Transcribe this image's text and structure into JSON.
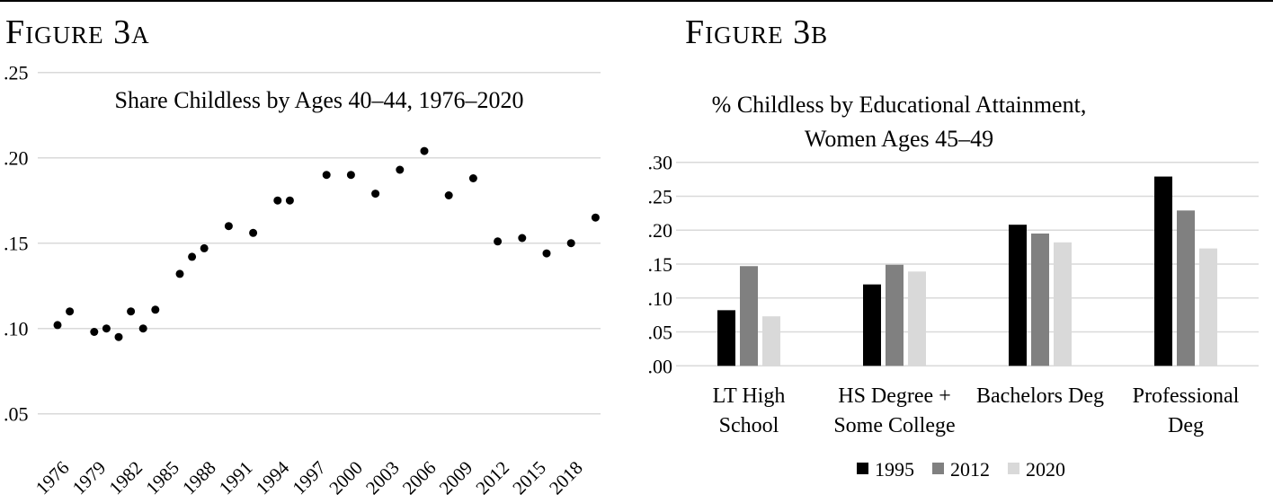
{
  "figures": {
    "a_label": "Figure 3a",
    "b_label": "Figure 3b"
  },
  "chart_data": [
    {
      "type": "scatter",
      "title": "Share Childless by Ages 40–44, 1976–2020",
      "xlabel": "",
      "ylabel": "",
      "ylim": [
        0.05,
        0.25
      ],
      "yticks": [
        ".05",
        ".10",
        ".15",
        ".20",
        ".25"
      ],
      "ytick_values": [
        0.05,
        0.1,
        0.15,
        0.2,
        0.25
      ],
      "xticks": [
        "1976",
        "1979",
        "1982",
        "1985",
        "1988",
        "1991",
        "1994",
        "1997",
        "2000",
        "2003",
        "2006",
        "2009",
        "2012",
        "2015",
        "2018"
      ],
      "grid": true,
      "points": [
        {
          "x": 1976,
          "y": 0.102
        },
        {
          "x": 1977,
          "y": 0.11
        },
        {
          "x": 1979,
          "y": 0.098
        },
        {
          "x": 1980,
          "y": 0.1
        },
        {
          "x": 1981,
          "y": 0.095
        },
        {
          "x": 1982,
          "y": 0.11
        },
        {
          "x": 1983,
          "y": 0.1
        },
        {
          "x": 1984,
          "y": 0.111
        },
        {
          "x": 1986,
          "y": 0.132
        },
        {
          "x": 1987,
          "y": 0.142
        },
        {
          "x": 1988,
          "y": 0.147
        },
        {
          "x": 1990,
          "y": 0.16
        },
        {
          "x": 1992,
          "y": 0.156
        },
        {
          "x": 1994,
          "y": 0.175
        },
        {
          "x": 1995,
          "y": 0.175
        },
        {
          "x": 1998,
          "y": 0.19
        },
        {
          "x": 2000,
          "y": 0.19
        },
        {
          "x": 2002,
          "y": 0.179
        },
        {
          "x": 2004,
          "y": 0.193
        },
        {
          "x": 2006,
          "y": 0.204
        },
        {
          "x": 2008,
          "y": 0.178
        },
        {
          "x": 2010,
          "y": 0.188
        },
        {
          "x": 2012,
          "y": 0.151
        },
        {
          "x": 2014,
          "y": 0.153
        },
        {
          "x": 2016,
          "y": 0.144
        },
        {
          "x": 2018,
          "y": 0.15
        },
        {
          "x": 2020,
          "y": 0.165
        }
      ]
    },
    {
      "type": "bar",
      "title": [
        "% Childless by Educational Attainment,",
        "Women Ages 45–49"
      ],
      "xlabel": "",
      "ylabel": "",
      "ylim": [
        0,
        0.3
      ],
      "yticks": [
        ".00",
        ".05",
        ".10",
        ".15",
        ".20",
        ".25",
        ".30"
      ],
      "ytick_values": [
        0,
        0.05,
        0.1,
        0.15,
        0.2,
        0.25,
        0.3
      ],
      "grid": true,
      "legend_position": "bottom",
      "categories": [
        [
          "LT High",
          "School"
        ],
        [
          "HS Degree +",
          "Some College"
        ],
        [
          "Bachelors Deg"
        ],
        [
          "Professional",
          "Deg"
        ]
      ],
      "series": [
        {
          "name": "1995",
          "color": "#000000",
          "values": [
            0.082,
            0.12,
            0.208,
            0.279
          ]
        },
        {
          "name": "2012",
          "color": "#808080",
          "values": [
            0.147,
            0.149,
            0.195,
            0.229
          ]
        },
        {
          "name": "2020",
          "color": "#d9d9d9",
          "values": [
            0.073,
            0.139,
            0.182,
            0.173
          ]
        }
      ]
    }
  ]
}
